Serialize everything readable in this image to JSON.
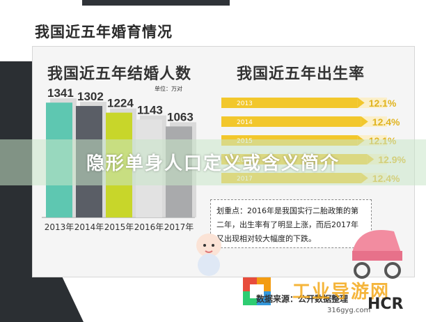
{
  "page_title": "我国近五年婚育情况",
  "banner_text": "隐形单身人口定义或含义简介",
  "note_text": "划重点：2016年是我国实行二胎政策的第二年，出生率有了明显上涨，而后2017年又出现相对较大幅度的下跌。",
  "source_text": "数据来源：公开数据整理",
  "brand_text": "工业导游网",
  "site_text": "316gyg.com",
  "hcr_text": "HCR",
  "chart_data": [
    {
      "type": "bar",
      "title": "我国近五年结婚人数",
      "unit": "单位：万对",
      "categories": [
        "2013年",
        "2014年",
        "2015年",
        "2016年",
        "2017年"
      ],
      "values": [
        1341,
        1302,
        1224,
        1143,
        1063
      ],
      "value_labels": [
        "1341",
        "1302",
        "1224",
        "1143",
        "1063"
      ],
      "colors": [
        "#5ec7b1",
        "#5a5e66",
        "#c8d62a",
        "#e2e2e2",
        "#a9aaac"
      ],
      "ylim": [
        0,
        1400
      ],
      "grid": false,
      "legend": "none"
    },
    {
      "type": "bar",
      "orientation": "horizontal",
      "title": "我国近五年出生率",
      "categories": [
        "2013",
        "2014",
        "2015",
        "2016",
        "2017"
      ],
      "values": [
        12.1,
        12.4,
        12.1,
        12.9,
        12.4
      ],
      "value_labels": [
        "12.1%",
        "12.4%",
        "12.1%",
        "12.9%",
        "12.4%"
      ],
      "color": "#f2c72c",
      "xlim": [
        0,
        14
      ],
      "grid": false,
      "legend": "none"
    }
  ]
}
